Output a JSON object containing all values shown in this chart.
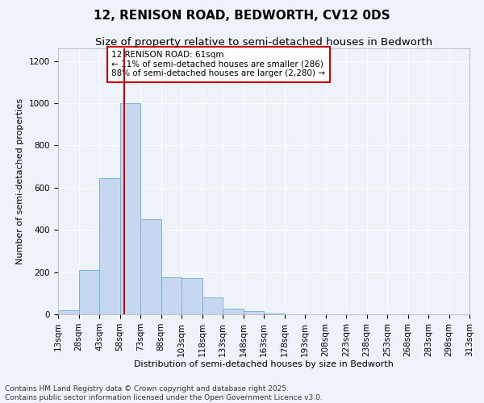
{
  "title_line1": "12, RENISON ROAD, BEDWORTH, CV12 0DS",
  "title_line2": "Size of property relative to semi-detached houses in Bedworth",
  "xlabel": "Distribution of semi-detached houses by size in Bedworth",
  "ylabel": "Number of semi-detached properties",
  "footnote_line1": "Contains HM Land Registry data © Crown copyright and database right 2025.",
  "footnote_line2": "Contains public sector information licensed under the Open Government Licence v3.0.",
  "annotation_title": "12 RENISON ROAD: 61sqm",
  "annotation_line2": "← 11% of semi-detached houses are smaller (286)",
  "annotation_line3": "88% of semi-detached houses are larger (2,280) →",
  "bin_edges": [
    13,
    28,
    43,
    58,
    73,
    88,
    103,
    118,
    133,
    148,
    163,
    178,
    193,
    208,
    223,
    238,
    253,
    268,
    283,
    298,
    313
  ],
  "bar_values": [
    20,
    210,
    645,
    1000,
    450,
    175,
    170,
    80,
    25,
    15,
    5,
    0,
    0,
    0,
    0,
    0,
    0,
    0,
    0,
    0
  ],
  "bar_color": "#c5d8ef",
  "bar_edge_color": "#6aaad4",
  "vline_color": "#cc0000",
  "vline_x": 61,
  "ylim": [
    0,
    1260
  ],
  "yticks": [
    0,
    200,
    400,
    600,
    800,
    1000,
    1200
  ],
  "annotation_box_color": "#cc0000",
  "background_color": "#eef2f9",
  "grid_color": "#ffffff",
  "title_fontsize": 11,
  "subtitle_fontsize": 9.5,
  "axis_label_fontsize": 8,
  "tick_fontsize": 7.5,
  "annotation_fontsize": 7.5,
  "footnote_fontsize": 6.5
}
